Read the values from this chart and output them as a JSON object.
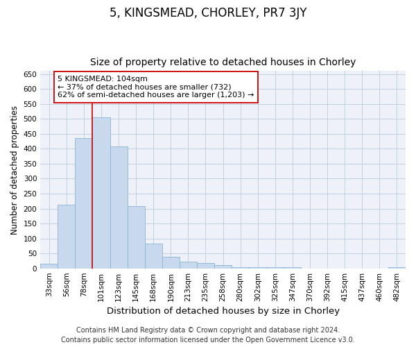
{
  "title": "5, KINGSMEAD, CHORLEY, PR7 3JY",
  "subtitle": "Size of property relative to detached houses in Chorley",
  "xlabel": "Distribution of detached houses by size in Chorley",
  "ylabel": "Number of detached properties",
  "categories": [
    "33sqm",
    "56sqm",
    "78sqm",
    "101sqm",
    "123sqm",
    "145sqm",
    "168sqm",
    "190sqm",
    "213sqm",
    "235sqm",
    "258sqm",
    "280sqm",
    "302sqm",
    "325sqm",
    "347sqm",
    "370sqm",
    "392sqm",
    "415sqm",
    "437sqm",
    "460sqm",
    "482sqm"
  ],
  "values": [
    15,
    212,
    435,
    505,
    408,
    208,
    83,
    38,
    22,
    18,
    10,
    5,
    5,
    5,
    5,
    0,
    0,
    0,
    0,
    0,
    5
  ],
  "bar_color": "#c8d8ed",
  "bar_edge_color": "#8ab4d4",
  "vline_color": "#cc0000",
  "vline_x_index": 3,
  "annotation_text": "5 KINGSMEAD: 104sqm\n← 37% of detached houses are smaller (732)\n62% of semi-detached houses are larger (1,203) →",
  "annotation_box_color": "#ffffff",
  "annotation_box_edge": "#cc0000",
  "grid_color": "#c0d0e0",
  "background_color": "#eef2f8",
  "footer_text": "Contains HM Land Registry data © Crown copyright and database right 2024.\nContains public sector information licensed under the Open Government Licence v3.0.",
  "ylim": [
    0,
    660
  ],
  "yticks": [
    0,
    50,
    100,
    150,
    200,
    250,
    300,
    350,
    400,
    450,
    500,
    550,
    600,
    650
  ],
  "title_fontsize": 12,
  "subtitle_fontsize": 10,
  "xlabel_fontsize": 9.5,
  "ylabel_fontsize": 8.5,
  "tick_fontsize": 7.5,
  "annot_fontsize": 8,
  "footer_fontsize": 7
}
